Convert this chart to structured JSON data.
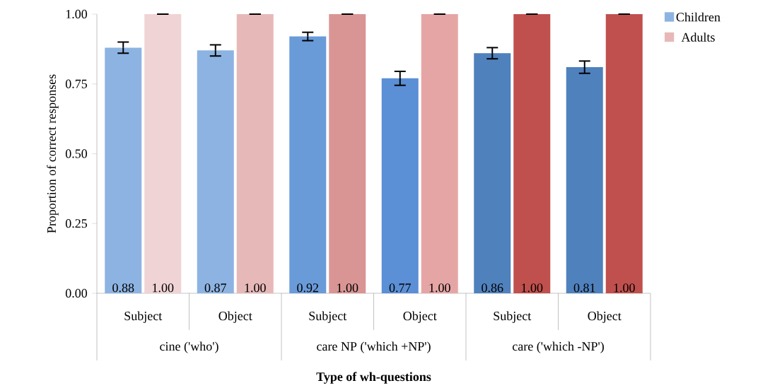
{
  "chart_data": {
    "type": "bar",
    "xlabel": "Type of wh-questions",
    "ylabel": "Proportion of correct responses",
    "categories": [
      "Subject",
      "Object",
      "Subject",
      "Object",
      "Subject",
      "Object"
    ],
    "annotations": [
      "cine ('who')",
      "care NP  ('which +NP')",
      "care  ('which -NP')"
    ],
    "series": [
      {
        "name": "Children",
        "color": "#8db3e2",
        "colors": [
          "#8db3e2",
          "#8db3e2",
          "#6a9bd9",
          "#5b8fd6",
          "#4f81bd",
          "#4f81bd"
        ],
        "values": [
          0.88,
          0.87,
          0.92,
          0.77,
          0.86,
          0.81
        ],
        "value_labels": [
          "0.88",
          "0.87",
          "0.92",
          "0.77",
          "0.86",
          "0.81"
        ],
        "errors": [
          0.02,
          0.02,
          0.015,
          0.025,
          0.02,
          0.022
        ]
      },
      {
        "name": "Adults",
        "color": "#e6b9b8",
        "colors": [
          "#f0d3d4",
          "#e6b9b8",
          "#d99594",
          "#e6a5a5",
          "#c0504d",
          "#c0504d"
        ],
        "values": [
          1.0,
          1.0,
          1.0,
          1.0,
          1.0,
          1.0
        ],
        "value_labels": [
          "1.00",
          "1.00",
          "1.00",
          "1.00",
          "1.00",
          "1.00"
        ],
        "errors": [
          0,
          0,
          0,
          0,
          0,
          0
        ]
      }
    ],
    "ylim": [
      0,
      1
    ],
    "yticks": [
      {
        "value": 0,
        "label": "0.00"
      },
      {
        "value": 0.25,
        "label": "0.25"
      },
      {
        "value": 0.5,
        "label": "0.50"
      },
      {
        "value": 0.75,
        "label": "0.75"
      },
      {
        "value": 1,
        "label": "1.00"
      }
    ],
    "legend": "top right",
    "grid": false
  }
}
